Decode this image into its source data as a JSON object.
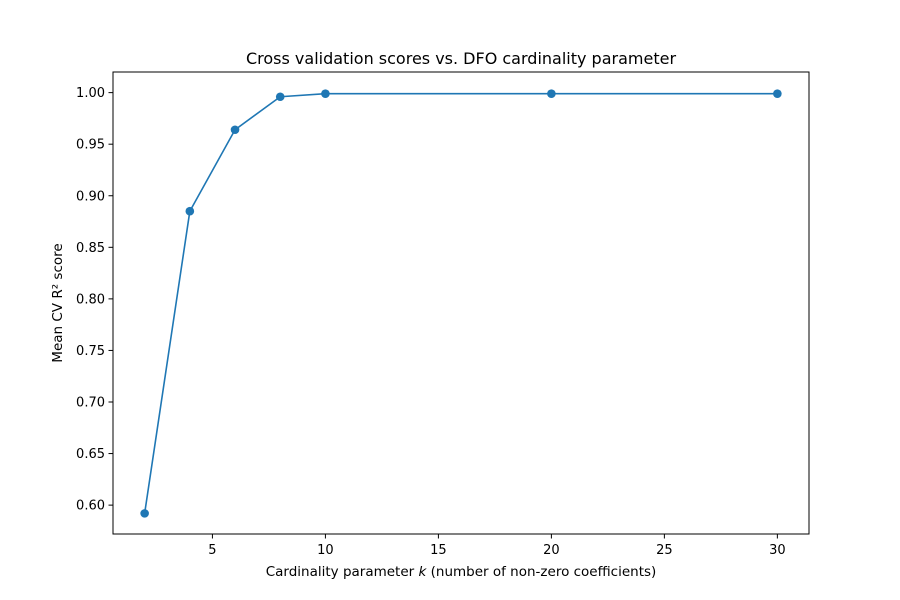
{
  "chart_data": {
    "type": "line",
    "title": "Cross validation scores vs. DFO cardinality parameter",
    "xlabel_prefix": "Cardinality parameter ",
    "xlabel_var": "k",
    "xlabel_suffix": " (number of non-zero coefficients)",
    "ylabel": "Mean CV R² score",
    "x": [
      2,
      4,
      6,
      8,
      10,
      20,
      30
    ],
    "series": [
      {
        "values": [
          0.592,
          0.885,
          0.964,
          0.996,
          0.999,
          0.999,
          0.999
        ]
      }
    ],
    "xlim": [
      0.6,
      31.4
    ],
    "ylim": [
      0.572,
      1.02
    ],
    "xticks": [
      5,
      10,
      15,
      20,
      25,
      30
    ],
    "xtick_labels": [
      "5",
      "10",
      "15",
      "20",
      "25",
      "30"
    ],
    "yticks": [
      0.6,
      0.65,
      0.7,
      0.75,
      0.8,
      0.85,
      0.9,
      0.95,
      1.0
    ],
    "ytick_labels": [
      "0.60",
      "0.65",
      "0.70",
      "0.75",
      "0.80",
      "0.85",
      "0.90",
      "0.95",
      "1.00"
    ],
    "grid": false,
    "line_color": "#1f77b4",
    "marker": "circle"
  }
}
